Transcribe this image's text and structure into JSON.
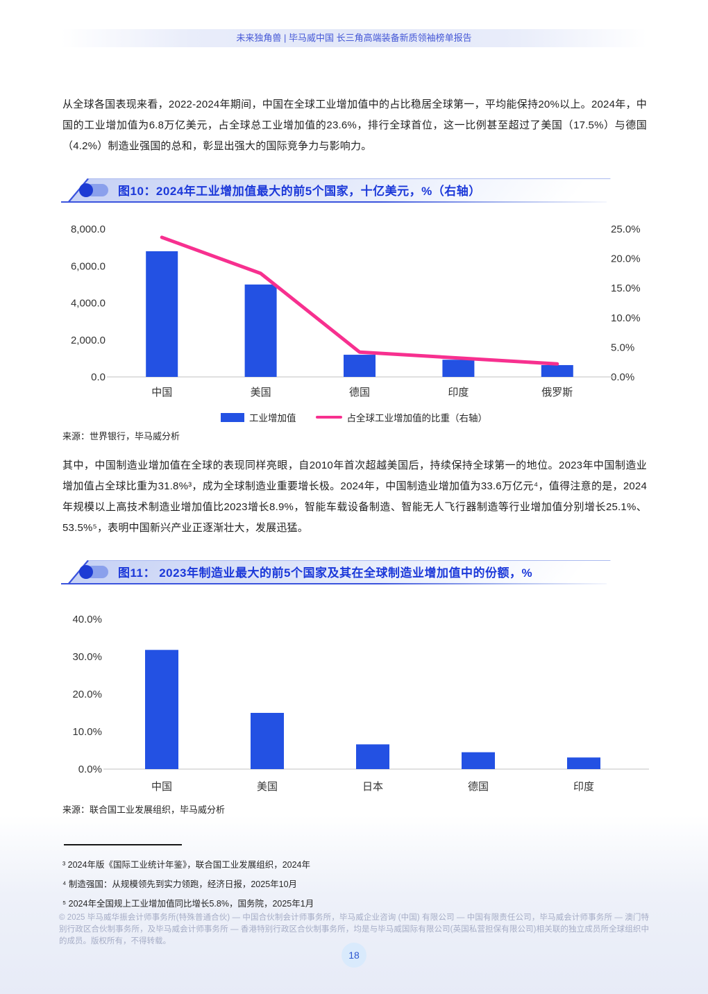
{
  "header": {
    "title": "未来独角兽 | 毕马威中国 长三角高端装备新质领袖榜单报告"
  },
  "paragraphs": {
    "p1": "从全球各国表现来看，2022-2024年期间，中国在全球工业增加值中的占比稳居全球第一，平均能保持20%以上。2024年，中国的工业增加值为6.8万亿美元，占全球总工业增加值的23.6%，排行全球首位，这一比例甚至超过了美国（17.5%）与德国（4.2%）制造业强国的总和，彰显出强大的国际竞争力与影响力。",
    "p2": "其中，中国制造业增加值在全球的表现同样亮眼，自2010年首次超越美国后，持续保持全球第一的地位。2023年中国制造业增加值占全球比重为31.8%³，成为全球制造业重要增长极。2024年，中国制造业增加值为33.6万亿元⁴，值得注意的是，2024年规模以上高技术制造业增加值比2023增长8.9%，智能车载设备制造、智能无人飞行器制造等行业增加值分别增长25.1%、53.5%⁵，表明中国新兴产业正逐渐壮大，发展迅猛。"
  },
  "figure10": {
    "title": "图10：2024年工业增加值最大的前5个国家，十亿美元，%（右轴）",
    "source": "来源：世界银行，毕马威分析"
  },
  "figure11": {
    "title": "图11： 2023年制造业最大的前5个国家及其在全球制造业增加值中的份额，%",
    "source": "来源：联合国工业发展组织，毕马威分析"
  },
  "chart_data": [
    {
      "type": "bar",
      "title": "2024年工业增加值最大的前5个国家，十亿美元，%（右轴）",
      "categories": [
        "中国",
        "美国",
        "德国",
        "印度",
        "俄罗斯"
      ],
      "series": [
        {
          "name": "工业增加值",
          "type": "bar",
          "axis": "left",
          "values": [
            6800,
            5000,
            1200,
            930,
            640
          ]
        },
        {
          "name": "占全球工业增加值的比重（右轴）",
          "type": "line",
          "axis": "right",
          "values": [
            23.6,
            17.5,
            4.2,
            3.2,
            2.2
          ]
        }
      ],
      "left_axis": {
        "ticks": [
          "0.0",
          "2,000.0",
          "4,000.0",
          "6,000.0",
          "8,000.0"
        ],
        "min": 0,
        "max": 8000
      },
      "right_axis": {
        "ticks": [
          "0.0%",
          "5.0%",
          "10.0%",
          "15.0%",
          "20.0%",
          "25.0%"
        ],
        "min": 0,
        "max": 25
      },
      "legend_position": "bottom",
      "grid": false,
      "colors": {
        "bar": "#2351e3",
        "line": "#f7308f"
      }
    },
    {
      "type": "bar",
      "title": "2023年制造业最大的前5个国家及其在全球制造业增加值中的份额，%",
      "categories": [
        "中国",
        "美国",
        "日本",
        "德国",
        "印度"
      ],
      "values": [
        31.8,
        15.0,
        6.6,
        4.5,
        3.1
      ],
      "left_axis": {
        "ticks": [
          "0.0%",
          "10.0%",
          "20.0%",
          "30.0%",
          "40.0%"
        ],
        "min": 0,
        "max": 40
      },
      "grid": false,
      "colors": {
        "bar": "#2351e3"
      }
    }
  ],
  "footnotes": {
    "items": [
      {
        "text": "³ 2024年版《国际工业统计年鉴》，联合国工业发展组织，2024年"
      },
      {
        "text": "⁴ 制造强国：从规模领先到实力领跑，经济日报，2025年10月"
      },
      {
        "text": "⁵ 2024年全国规上工业增加值同比增长5.8%，国务院，2025年1月"
      }
    ]
  },
  "footer": {
    "copyright": "© 2025 毕马威华振会计师事务所(特殊普通合伙) — 中国合伙制会计师事务所，毕马威企业咨询 (中国) 有限公司 — 中国有限责任公司，毕马威会计师事务所 — 澳门特别行政区合伙制事务所，及毕马威会计师事务所 — 香港特别行政区合伙制事务所，均是与毕马威国际有限公司(英国私营担保有限公司)相关联的独立成员所全球组织中的成员。版权所有，不得转载。",
    "page_number": "18"
  }
}
